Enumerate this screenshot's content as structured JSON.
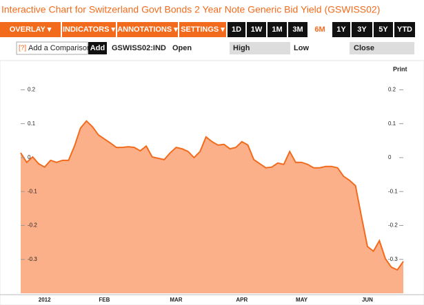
{
  "header": {
    "title": "Interactive Chart for Switzerland Govt Bonds 2 Year Note Generic Bid Yield (GSWISS02)"
  },
  "toolbar": {
    "menus": [
      "OVERLAY ▾",
      "INDICATORS ▾",
      "ANNOTATIONS ▾",
      "SETTINGS ▾"
    ],
    "ranges": [
      "1D",
      "1W",
      "1M",
      "3M",
      "6M",
      "1Y",
      "3Y",
      "5Y",
      "YTD"
    ],
    "active_range": 4
  },
  "quote_bar": {
    "help": "[?]",
    "comparison_placeholder": "Add a Comparison",
    "add_button": "Add",
    "ticker": "GSWISS02:IND",
    "fields": [
      "Open",
      "High",
      "Low",
      "Close"
    ]
  },
  "print": "Print",
  "chart_data": {
    "type": "area",
    "line_color": "#f26b1d",
    "fill_color": "#fbb08a",
    "categories": [
      null,
      null,
      null,
      null,
      "2012",
      null,
      null,
      null,
      null,
      null,
      null,
      null,
      null,
      null,
      "FEB",
      null,
      null,
      null,
      null,
      null,
      null,
      null,
      null,
      null,
      null,
      null,
      "MAR",
      null,
      null,
      null,
      null,
      null,
      null,
      null,
      null,
      null,
      null,
      "APR",
      null,
      null,
      null,
      null,
      null,
      null,
      null,
      null,
      null,
      "MAY",
      null,
      null,
      null,
      null,
      null,
      null,
      null,
      null,
      null,
      null,
      "JUN",
      null,
      null,
      null,
      null,
      null,
      null
    ],
    "values": [
      0.014,
      -0.014,
      0.002,
      -0.018,
      -0.028,
      -0.008,
      -0.014,
      -0.008,
      -0.008,
      0.034,
      0.087,
      0.108,
      0.091,
      0.067,
      0.055,
      0.043,
      0.03,
      0.03,
      0.032,
      0.03,
      0.02,
      0.034,
      0.002,
      -0.002,
      -0.006,
      0.014,
      0.03,
      0.026,
      0.018,
      0,
      0.018,
      0.061,
      0.047,
      0.037,
      0.039,
      0.026,
      0.03,
      0.047,
      0.037,
      -0.006,
      -0.018,
      -0.03,
      -0.028,
      -0.016,
      -0.02,
      0.018,
      -0.014,
      -0.014,
      -0.02,
      -0.03,
      -0.03,
      -0.026,
      -0.026,
      -0.03,
      -0.055,
      -0.067,
      -0.083,
      -0.174,
      -0.262,
      -0.276,
      -0.245,
      -0.298,
      -0.323,
      -0.331,
      -0.306
    ],
    "ylim": [
      -0.4,
      0.25
    ],
    "yticks": [
      -0.3,
      -0.2,
      -0.1,
      0,
      0.1,
      0.2
    ],
    "grid": false
  }
}
